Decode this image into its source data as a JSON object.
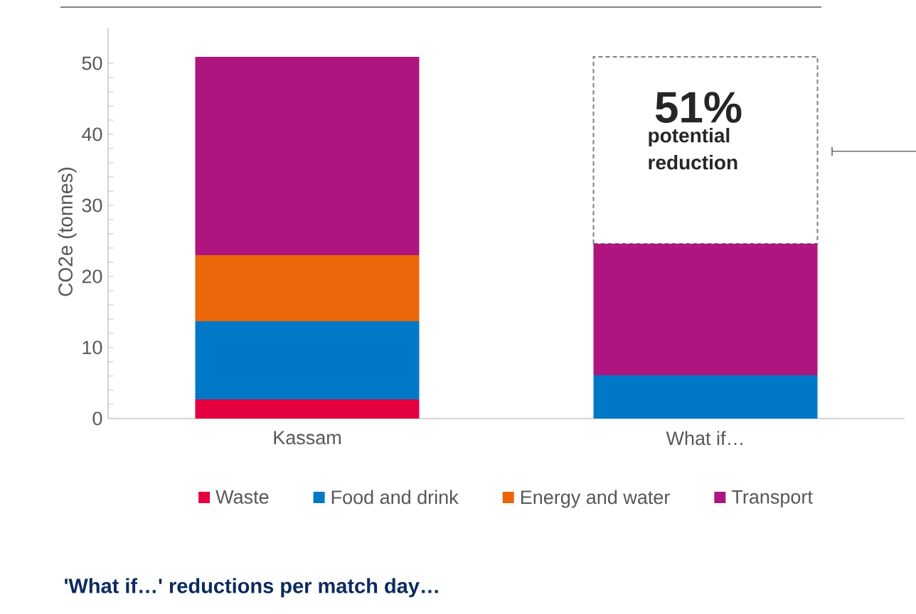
{
  "chart_data": {
    "type": "bar",
    "stacked": true,
    "title": "'What if…' reductions per match day…",
    "ylabel": "CO2e (tonnes)",
    "categories": [
      "Kassam",
      "What if…"
    ],
    "series": [
      {
        "name": "Waste",
        "color": "#e5003f",
        "values": [
          2.7,
          0
        ]
      },
      {
        "name": "Food and drink",
        "color": "#0078c8",
        "values": [
          11.0,
          6.1
        ]
      },
      {
        "name": "Energy and water",
        "color": "#ea6608",
        "values": [
          9.3,
          0
        ]
      },
      {
        "name": "Transport",
        "color": "#ae157f",
        "values": [
          27.9,
          18.5
        ]
      }
    ],
    "ylim": [
      0,
      55
    ],
    "yticks": [
      0,
      10,
      20,
      30,
      40,
      50
    ],
    "grid": false,
    "legend": "bottom",
    "annotations": [
      "51%",
      "potential reduction"
    ]
  }
}
